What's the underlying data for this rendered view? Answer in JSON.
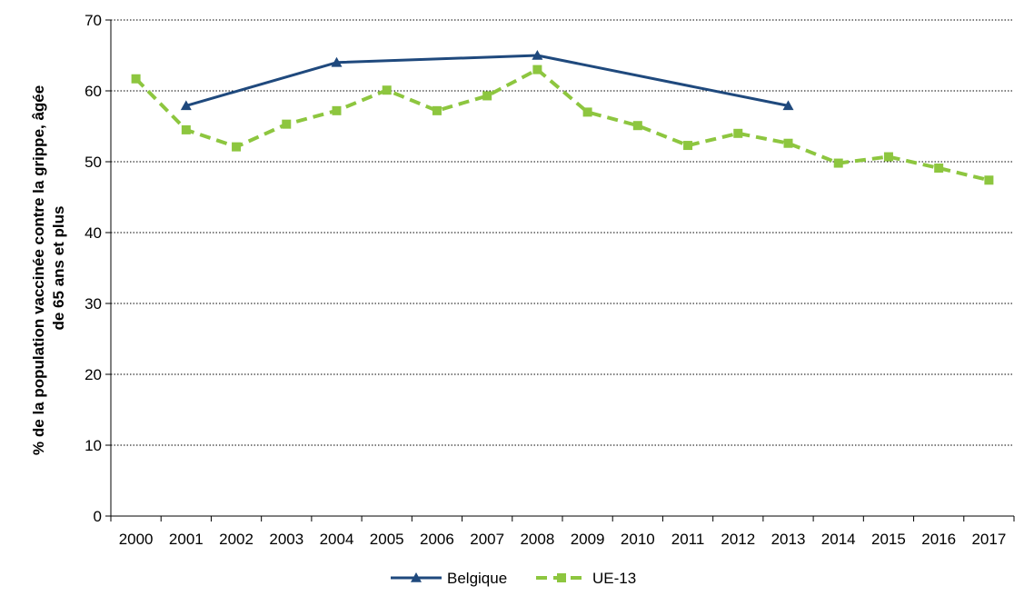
{
  "chart_data": {
    "type": "line",
    "title": "",
    "xlabel": "",
    "ylabel_line1": "% de la population vaccinée contre la grippe, âgée",
    "ylabel_line2": "de 65 ans et plus",
    "categories": [
      "2000",
      "2001",
      "2002",
      "2003",
      "2004",
      "2005",
      "2006",
      "2007",
      "2008",
      "2009",
      "2010",
      "2011",
      "2012",
      "2013",
      "2014",
      "2015",
      "2016",
      "2017"
    ],
    "ylim": [
      0,
      70
    ],
    "yticks": [
      0,
      10,
      20,
      30,
      40,
      50,
      60,
      70
    ],
    "grid": "horizontal-dotted",
    "legend_position": "bottom",
    "series": [
      {
        "name": "Belgique",
        "color": "#1f497d",
        "style": "solid",
        "marker": "triangle",
        "points": [
          {
            "x": "2001",
            "y": 57.9
          },
          {
            "x": "2004",
            "y": 64.0
          },
          {
            "x": "2008",
            "y": 65.0
          },
          {
            "x": "2013",
            "y": 57.9
          }
        ]
      },
      {
        "name": "UE-13",
        "color": "#8dc63f",
        "style": "dashed",
        "marker": "square",
        "points": [
          {
            "x": "2000",
            "y": 61.7
          },
          {
            "x": "2001",
            "y": 54.5
          },
          {
            "x": "2002",
            "y": 52.1
          },
          {
            "x": "2003",
            "y": 55.3
          },
          {
            "x": "2004",
            "y": 57.2
          },
          {
            "x": "2005",
            "y": 60.1
          },
          {
            "x": "2006",
            "y": 57.2
          },
          {
            "x": "2007",
            "y": 59.3
          },
          {
            "x": "2008",
            "y": 63.0
          },
          {
            "x": "2009",
            "y": 57.0
          },
          {
            "x": "2010",
            "y": 55.1
          },
          {
            "x": "2011",
            "y": 52.3
          },
          {
            "x": "2012",
            "y": 54.0
          },
          {
            "x": "2013",
            "y": 52.6
          },
          {
            "x": "2014",
            "y": 49.8
          },
          {
            "x": "2015",
            "y": 50.7
          },
          {
            "x": "2016",
            "y": 49.1
          },
          {
            "x": "2017",
            "y": 47.4
          }
        ]
      }
    ]
  }
}
